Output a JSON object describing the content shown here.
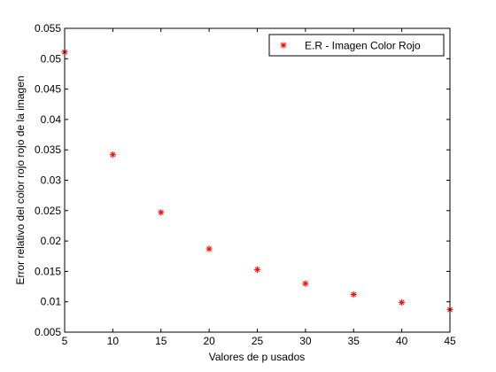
{
  "chart_data": {
    "type": "scatter",
    "xlabel": "Valores de p usados",
    "ylabel": "Error relativo del color rojo rojo de la imagen",
    "xlim": [
      5,
      45
    ],
    "ylim": [
      0.005,
      0.055
    ],
    "x_ticks": [
      5,
      10,
      15,
      20,
      25,
      30,
      35,
      40,
      45
    ],
    "x_tick_labels": [
      "5",
      "10",
      "15",
      "20",
      "25",
      "30",
      "35",
      "40",
      "45"
    ],
    "y_ticks": [
      0.005,
      0.01,
      0.015,
      0.02,
      0.025,
      0.03,
      0.035,
      0.04,
      0.045,
      0.05,
      0.055
    ],
    "y_tick_labels": [
      "0.005",
      "0.01",
      "0.015",
      "0.02",
      "0.025",
      "0.03",
      "0.035",
      "0.04",
      "0.045",
      "0.05",
      "0.055"
    ],
    "grid": false,
    "legend_position": "top-right",
    "series": [
      {
        "name": "E.R - Imagen Color Rojo",
        "color": "#ff0000",
        "marker": "asterisk",
        "x": [
          5,
          10,
          15,
          20,
          25,
          30,
          35,
          40,
          45
        ],
        "y": [
          0.0511,
          0.0342,
          0.0247,
          0.0187,
          0.0153,
          0.013,
          0.0112,
          0.0099,
          0.0087
        ]
      }
    ]
  }
}
